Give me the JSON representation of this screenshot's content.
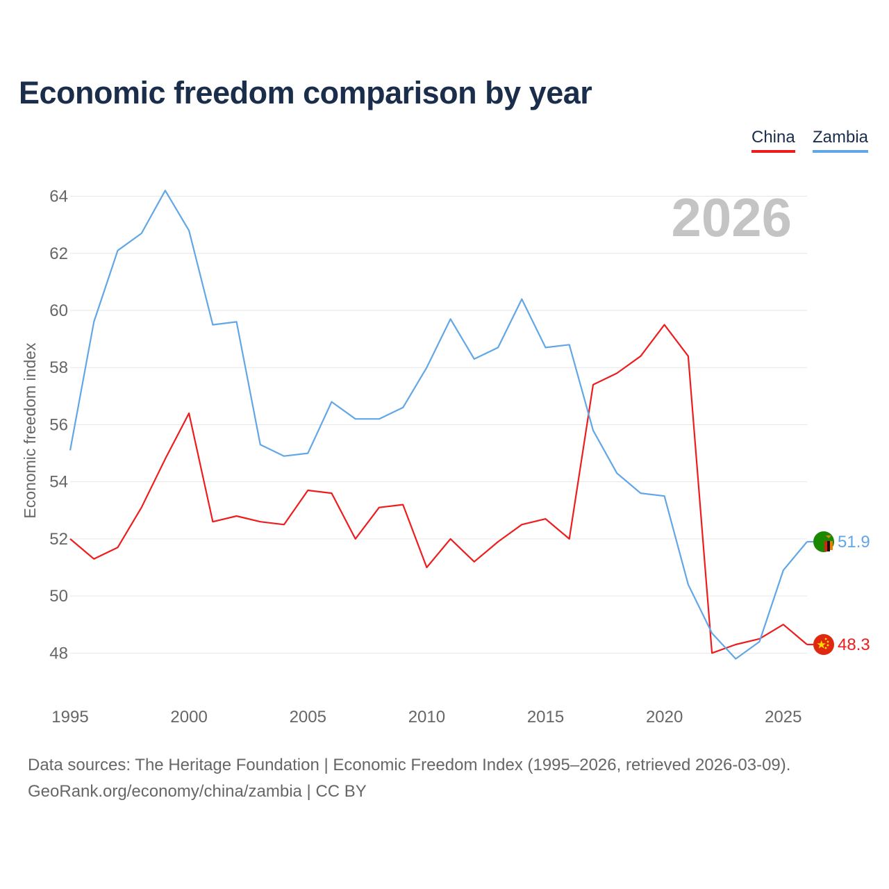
{
  "title": "Economic freedom comparison by year",
  "legend": {
    "china": "China",
    "zambia": "Zambia"
  },
  "footer": {
    "sources": "Data sources: The Heritage Foundation | Economic Freedom Index (1995–2026, retrieved 2026-03-09).",
    "credit": "GeoRank.org/economy/china/zambia | CC BY"
  },
  "colors": {
    "china": "#ee1c1c",
    "zambia": "#61a6e6",
    "title": "#1a2e4c",
    "axis_text": "#666666",
    "grid": "#e6e6e6",
    "watermark": "#c4c4c4"
  },
  "chart_data": {
    "type": "line",
    "year_label": "2026",
    "ylabel": "Economic freedom index",
    "ylim": [
      46.5,
      64.5
    ],
    "xlim": [
      1995,
      2026
    ],
    "yticks": [
      48,
      50,
      52,
      54,
      56,
      58,
      60,
      62,
      64
    ],
    "xticks": [
      1995,
      2000,
      2005,
      2010,
      2015,
      2020,
      2025
    ],
    "x": [
      1995,
      1996,
      1997,
      1998,
      1999,
      2000,
      2001,
      2002,
      2003,
      2004,
      2005,
      2006,
      2007,
      2008,
      2009,
      2010,
      2011,
      2012,
      2013,
      2014,
      2015,
      2016,
      2017,
      2018,
      2019,
      2020,
      2021,
      2022,
      2023,
      2024,
      2025,
      2026
    ],
    "series": [
      {
        "name": "China",
        "key": "china",
        "end_label": "48.3",
        "values": [
          52.0,
          51.3,
          51.7,
          53.1,
          54.8,
          56.4,
          52.6,
          52.8,
          52.6,
          52.5,
          53.7,
          53.6,
          52.0,
          53.1,
          53.2,
          51.0,
          52.0,
          51.2,
          51.9,
          52.5,
          52.7,
          52.0,
          57.4,
          57.8,
          58.4,
          59.5,
          58.4,
          48.0,
          48.3,
          48.5,
          49.0,
          48.3
        ]
      },
      {
        "name": "Zambia",
        "key": "zambia",
        "end_label": "51.9",
        "values": [
          55.1,
          59.6,
          62.1,
          62.7,
          64.2,
          62.8,
          59.5,
          59.6,
          55.3,
          54.9,
          55.0,
          56.8,
          56.2,
          56.2,
          56.6,
          58.0,
          59.7,
          58.3,
          58.7,
          60.4,
          58.7,
          58.8,
          55.8,
          54.3,
          53.6,
          53.5,
          50.4,
          48.7,
          47.8,
          48.4,
          50.9,
          51.9
        ]
      }
    ]
  }
}
